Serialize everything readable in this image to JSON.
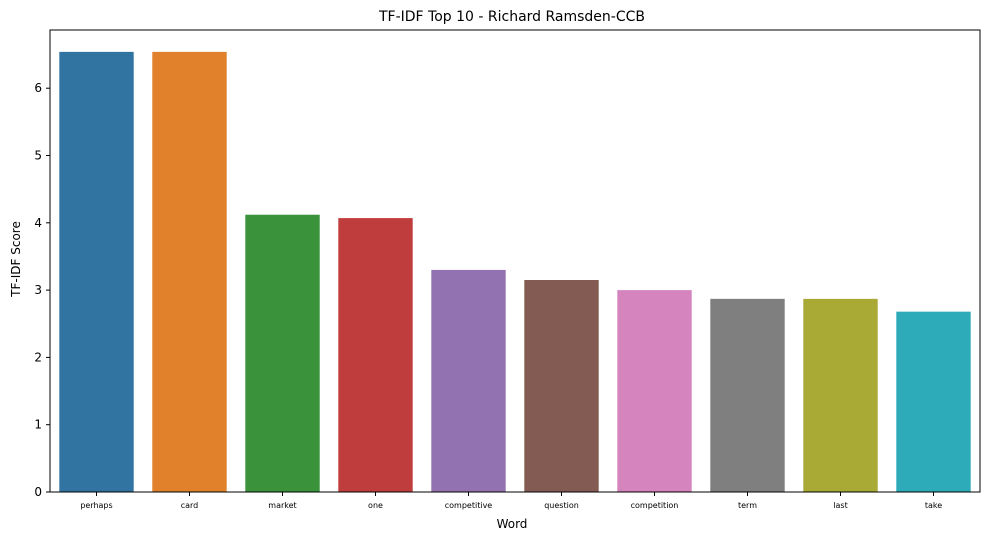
{
  "chart_data": {
    "type": "bar",
    "title": "TF-IDF Top 10 - Richard Ramsden-CCB",
    "xlabel": "Word",
    "ylabel": "TF-IDF Score",
    "categories": [
      "perhaps",
      "card",
      "market",
      "one",
      "competitive",
      "question",
      "competition",
      "term",
      "last",
      "take"
    ],
    "values": [
      6.54,
      6.54,
      4.12,
      4.07,
      3.3,
      3.15,
      3.0,
      2.87,
      2.87,
      2.68
    ],
    "colors": [
      "#3274a1",
      "#e1812c",
      "#3a923a",
      "#c03d3e",
      "#9372b2",
      "#845b53",
      "#d684bd",
      "#7f7f7f",
      "#a9aa35",
      "#2eabb8"
    ],
    "ylim": [
      0,
      6.865
    ],
    "yticks": [
      0,
      1,
      2,
      3,
      4,
      5,
      6
    ],
    "grid": false,
    "legend": "none"
  }
}
